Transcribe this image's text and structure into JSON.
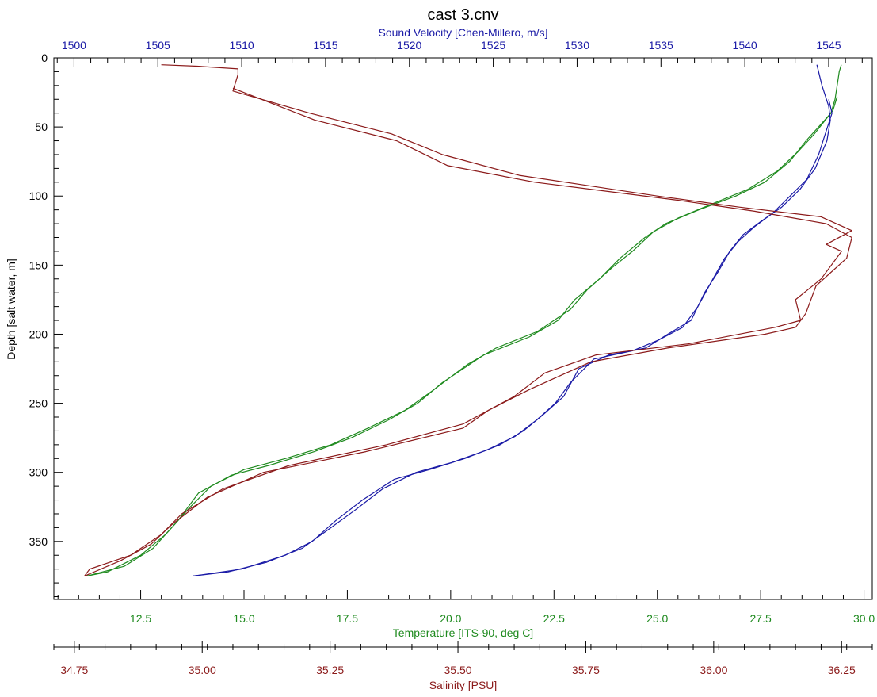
{
  "chart_data": {
    "type": "line",
    "title": "cast 3.cnv",
    "colors": {
      "depth_axis": "#000000",
      "sound_velocity": "#1a1aa6",
      "temperature": "#1e8a1e",
      "salinity": "#8b1a1a"
    },
    "axes": {
      "depth": {
        "label": "Depth [salt water, m]",
        "min": 0,
        "max": 392,
        "inverted": true,
        "ticks": [
          0,
          50,
          100,
          150,
          200,
          250,
          300,
          350
        ],
        "tick_labels": [
          "0",
          "50",
          "100",
          "150",
          "200",
          "250",
          "300",
          "350"
        ]
      },
      "sound_velocity": {
        "label": "Sound Velocity [Chen-Millero, m/s]",
        "position": "top",
        "min": 1498.8,
        "max": 1547.6,
        "ticks": [
          1500,
          1505,
          1510,
          1515,
          1520,
          1525,
          1530,
          1535,
          1540,
          1545
        ],
        "tick_labels": [
          "1500",
          "1505",
          "1510",
          "1515",
          "1520",
          "1525",
          "1530",
          "1535",
          "1540",
          "1545"
        ]
      },
      "temperature": {
        "label": "Temperature [ITS-90, deg C]",
        "position": "bottom",
        "min": 10.4,
        "max": 30.2,
        "ticks": [
          12.5,
          15,
          17.5,
          20,
          22.5,
          25,
          27.5,
          30
        ],
        "tick_labels": [
          "12.5",
          "15.0",
          "17.5",
          "20.0",
          "22.5",
          "25.0",
          "27.5",
          "30.0"
        ]
      },
      "salinity": {
        "label": "Salinity [PSU]",
        "position": "bottom",
        "min": 34.71,
        "max": 36.31,
        "ticks": [
          34.75,
          35.0,
          35.25,
          35.5,
          35.75,
          36.0,
          36.25
        ],
        "tick_labels": [
          "34.75",
          "35.00",
          "35.25",
          "35.50",
          "35.75",
          "36.00",
          "36.25"
        ]
      }
    },
    "series": [
      {
        "axis": "temperature",
        "points": [
          [
            29.45,
            5
          ],
          [
            29.4,
            10
          ],
          [
            29.35,
            20
          ],
          [
            29.3,
            30
          ],
          [
            29.2,
            40
          ],
          [
            28.9,
            50
          ],
          [
            28.6,
            60
          ],
          [
            28.2,
            75
          ],
          [
            27.6,
            90
          ],
          [
            26.9,
            100
          ],
          [
            26.0,
            110
          ],
          [
            25.2,
            120
          ],
          [
            24.7,
            130
          ],
          [
            24.1,
            145
          ],
          [
            23.6,
            160
          ],
          [
            23.0,
            175
          ],
          [
            22.6,
            190
          ],
          [
            21.9,
            202
          ],
          [
            20.8,
            215
          ],
          [
            19.8,
            235
          ],
          [
            19.2,
            250
          ],
          [
            18.5,
            262
          ],
          [
            17.6,
            275
          ],
          [
            16.7,
            285
          ],
          [
            15.6,
            295
          ],
          [
            14.7,
            302
          ],
          [
            13.9,
            315
          ],
          [
            13.4,
            335
          ],
          [
            12.8,
            355
          ],
          [
            12.1,
            368
          ],
          [
            11.2,
            375
          ]
        ]
      },
      {
        "axis": "temperature",
        "points": [
          [
            29.35,
            28
          ],
          [
            29.25,
            38
          ],
          [
            28.8,
            55
          ],
          [
            28.4,
            68
          ],
          [
            27.9,
            82
          ],
          [
            27.2,
            95
          ],
          [
            26.3,
            106
          ],
          [
            25.5,
            116
          ],
          [
            24.9,
            126
          ],
          [
            24.4,
            140
          ],
          [
            23.9,
            152
          ],
          [
            23.3,
            168
          ],
          [
            22.9,
            182
          ],
          [
            22.1,
            198
          ],
          [
            21.1,
            210
          ],
          [
            20.4,
            222
          ],
          [
            19.6,
            240
          ],
          [
            18.9,
            255
          ],
          [
            18.0,
            268
          ],
          [
            17.1,
            280
          ],
          [
            16.0,
            290
          ],
          [
            15.0,
            298
          ],
          [
            14.2,
            310
          ],
          [
            13.7,
            325
          ],
          [
            13.1,
            345
          ],
          [
            12.5,
            360
          ],
          [
            11.7,
            372
          ],
          [
            11.2,
            375
          ]
        ]
      },
      {
        "axis": "sound_velocity",
        "points": [
          [
            1544.3,
            5
          ],
          [
            1544.6,
            20
          ],
          [
            1545.0,
            35
          ],
          [
            1545.1,
            45
          ],
          [
            1544.9,
            60
          ],
          [
            1544.2,
            80
          ],
          [
            1543.3,
            95
          ],
          [
            1542.2,
            108
          ],
          [
            1541.0,
            118
          ],
          [
            1539.9,
            128
          ],
          [
            1539.1,
            140
          ],
          [
            1538.4,
            155
          ],
          [
            1537.6,
            170
          ],
          [
            1536.8,
            190
          ],
          [
            1535.4,
            200
          ],
          [
            1534.1,
            210
          ],
          [
            1531.9,
            215
          ],
          [
            1530.1,
            225
          ],
          [
            1529.2,
            245
          ],
          [
            1528.0,
            258
          ],
          [
            1526.8,
            270
          ],
          [
            1525.4,
            280
          ],
          [
            1523.3,
            290
          ],
          [
            1521.2,
            298
          ],
          [
            1519.1,
            305
          ],
          [
            1517.2,
            320
          ],
          [
            1515.6,
            335
          ],
          [
            1514.2,
            350
          ],
          [
            1512.6,
            360
          ],
          [
            1510.0,
            370
          ],
          [
            1507.1,
            375
          ]
        ]
      },
      {
        "axis": "sound_velocity",
        "points": [
          [
            1545.0,
            30
          ],
          [
            1545.2,
            40
          ],
          [
            1544.8,
            55
          ],
          [
            1544.4,
            70
          ],
          [
            1543.7,
            88
          ],
          [
            1542.7,
            100
          ],
          [
            1541.7,
            112
          ],
          [
            1540.6,
            122
          ],
          [
            1539.6,
            133
          ],
          [
            1538.8,
            145
          ],
          [
            1538.1,
            160
          ],
          [
            1537.2,
            180
          ],
          [
            1536.3,
            195
          ],
          [
            1534.9,
            204
          ],
          [
            1533.3,
            212
          ],
          [
            1531.0,
            218
          ],
          [
            1529.6,
            235
          ],
          [
            1528.7,
            250
          ],
          [
            1527.6,
            262
          ],
          [
            1526.3,
            274
          ],
          [
            1524.6,
            284
          ],
          [
            1522.5,
            293
          ],
          [
            1520.4,
            300
          ],
          [
            1518.4,
            312
          ],
          [
            1516.8,
            327
          ],
          [
            1515.1,
            342
          ],
          [
            1513.6,
            355
          ],
          [
            1511.5,
            365
          ],
          [
            1509.2,
            372
          ],
          [
            1507.1,
            375
          ]
        ]
      },
      {
        "axis": "salinity",
        "points": [
          [
            34.92,
            5
          ],
          [
            34.99,
            6
          ],
          [
            35.07,
            8
          ],
          [
            35.07,
            12
          ],
          [
            35.06,
            24
          ],
          [
            35.21,
            40
          ],
          [
            35.37,
            55
          ],
          [
            35.47,
            70
          ],
          [
            35.62,
            85
          ],
          [
            35.89,
            100
          ],
          [
            36.05,
            108
          ],
          [
            36.21,
            115
          ],
          [
            36.27,
            125
          ],
          [
            36.22,
            135
          ],
          [
            36.25,
            140
          ],
          [
            36.21,
            160
          ],
          [
            36.16,
            175
          ],
          [
            36.17,
            190
          ],
          [
            36.12,
            195
          ],
          [
            35.95,
            207
          ],
          [
            35.77,
            215
          ],
          [
            35.67,
            228
          ],
          [
            35.61,
            245
          ],
          [
            35.51,
            265
          ],
          [
            35.36,
            280
          ],
          [
            35.17,
            295
          ],
          [
            35.04,
            312
          ],
          [
            34.96,
            330
          ],
          [
            34.92,
            345
          ],
          [
            34.86,
            360
          ],
          [
            34.78,
            370
          ],
          [
            34.77,
            375
          ]
        ]
      },
      {
        "axis": "salinity",
        "points": [
          [
            35.06,
            22
          ],
          [
            35.22,
            45
          ],
          [
            35.38,
            60
          ],
          [
            35.48,
            78
          ],
          [
            35.65,
            90
          ],
          [
            35.93,
            103
          ],
          [
            36.08,
            111
          ],
          [
            36.22,
            120
          ],
          [
            36.27,
            130
          ],
          [
            36.26,
            145
          ],
          [
            36.2,
            165
          ],
          [
            36.18,
            185
          ],
          [
            36.16,
            195
          ],
          [
            36.1,
            200
          ],
          [
            35.91,
            210
          ],
          [
            35.76,
            220
          ],
          [
            35.64,
            240
          ],
          [
            35.56,
            255
          ],
          [
            35.51,
            268
          ],
          [
            35.32,
            285
          ],
          [
            35.12,
            300
          ],
          [
            35.01,
            318
          ],
          [
            34.94,
            338
          ],
          [
            34.9,
            352
          ],
          [
            34.84,
            364
          ],
          [
            34.77,
            375
          ]
        ]
      }
    ]
  }
}
